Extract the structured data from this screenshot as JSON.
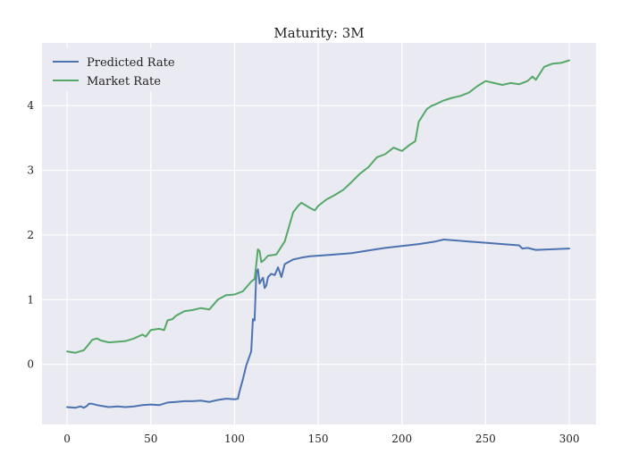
{
  "chart_data": {
    "type": "line",
    "title": "Maturity: 3M",
    "xlabel": "",
    "ylabel": "",
    "xlim": [
      -15,
      316
    ],
    "ylim": [
      -0.93,
      4.97
    ],
    "xticks": [
      0,
      50,
      100,
      150,
      200,
      250,
      300
    ],
    "yticks": [
      0,
      1,
      2,
      3,
      4
    ],
    "grid": true,
    "legend_position": "top-left",
    "series": [
      {
        "name": "Predicted Rate",
        "color": "#4c72b0",
        "x": [
          0,
          5,
          8,
          10,
          12,
          13,
          15,
          18,
          20,
          25,
          30,
          35,
          40,
          45,
          50,
          55,
          60,
          65,
          70,
          75,
          80,
          85,
          90,
          95,
          100,
          102,
          103,
          105,
          107,
          109,
          110,
          111,
          112,
          113,
          114,
          115,
          116,
          117,
          118,
          119,
          120,
          122,
          124,
          126,
          128,
          130,
          135,
          140,
          145,
          150,
          160,
          170,
          180,
          190,
          200,
          210,
          220,
          225,
          230,
          240,
          250,
          260,
          270,
          272,
          275,
          280,
          290,
          300
        ],
        "y": [
          -0.66,
          -0.67,
          -0.65,
          -0.67,
          -0.64,
          -0.61,
          -0.61,
          -0.63,
          -0.64,
          -0.66,
          -0.65,
          -0.66,
          -0.65,
          -0.63,
          -0.62,
          -0.63,
          -0.59,
          -0.58,
          -0.57,
          -0.57,
          -0.56,
          -0.58,
          -0.55,
          -0.53,
          -0.54,
          -0.53,
          -0.42,
          -0.23,
          -0.02,
          0.13,
          0.2,
          0.7,
          0.68,
          1.42,
          1.47,
          1.25,
          1.3,
          1.34,
          1.18,
          1.22,
          1.35,
          1.4,
          1.38,
          1.5,
          1.35,
          1.55,
          1.62,
          1.65,
          1.67,
          1.68,
          1.7,
          1.72,
          1.76,
          1.8,
          1.83,
          1.86,
          1.9,
          1.93,
          1.92,
          1.9,
          1.88,
          1.86,
          1.84,
          1.79,
          1.8,
          1.77,
          1.78,
          1.79
        ]
      },
      {
        "name": "Market Rate",
        "color": "#55a868",
        "x": [
          0,
          5,
          10,
          12,
          15,
          18,
          20,
          25,
          30,
          35,
          40,
          45,
          47,
          50,
          55,
          58,
          60,
          63,
          65,
          70,
          75,
          80,
          85,
          90,
          95,
          100,
          105,
          110,
          112,
          113,
          114,
          115,
          116,
          118,
          120,
          125,
          130,
          135,
          138,
          140,
          145,
          148,
          150,
          155,
          160,
          165,
          170,
          175,
          180,
          185,
          190,
          195,
          200,
          205,
          208,
          210,
          215,
          218,
          220,
          225,
          230,
          235,
          240,
          245,
          250,
          255,
          260,
          265,
          270,
          275,
          278,
          280,
          285,
          290,
          295,
          300
        ],
        "y": [
          0.2,
          0.18,
          0.22,
          0.28,
          0.38,
          0.4,
          0.37,
          0.34,
          0.35,
          0.36,
          0.4,
          0.46,
          0.43,
          0.53,
          0.55,
          0.53,
          0.68,
          0.7,
          0.75,
          0.82,
          0.84,
          0.87,
          0.85,
          1.0,
          1.07,
          1.08,
          1.13,
          1.28,
          1.32,
          1.55,
          1.78,
          1.75,
          1.58,
          1.62,
          1.68,
          1.7,
          1.9,
          2.35,
          2.45,
          2.5,
          2.42,
          2.38,
          2.45,
          2.55,
          2.62,
          2.7,
          2.82,
          2.95,
          3.05,
          3.2,
          3.25,
          3.35,
          3.3,
          3.4,
          3.45,
          3.75,
          3.95,
          4.0,
          4.02,
          4.08,
          4.12,
          4.15,
          4.2,
          4.3,
          4.38,
          4.35,
          4.32,
          4.35,
          4.33,
          4.38,
          4.45,
          4.4,
          4.6,
          4.65,
          4.66,
          4.7
        ]
      }
    ]
  }
}
